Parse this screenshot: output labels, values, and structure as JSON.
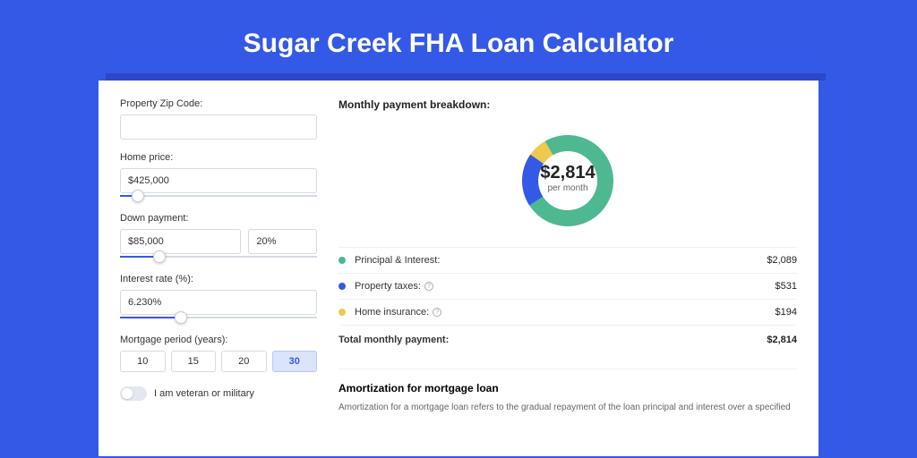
{
  "page": {
    "title": "Sugar Creek FHA Loan Calculator",
    "background": "#3459e6"
  },
  "form": {
    "zip": {
      "label": "Property Zip Code:",
      "value": ""
    },
    "home_price": {
      "label": "Home price:",
      "value": "$425,000",
      "slider_pct": 9
    },
    "down_payment": {
      "label": "Down payment:",
      "amount": "$85,000",
      "pct": "20%",
      "slider_pct": 20
    },
    "interest": {
      "label": "Interest rate (%):",
      "value": "6.230%",
      "slider_pct": 31
    },
    "period": {
      "label": "Mortgage period (years):",
      "options": [
        "10",
        "15",
        "20",
        "30"
      ],
      "selected": "30"
    },
    "veteran": {
      "label": "I am veteran or military",
      "checked": false
    }
  },
  "breakdown": {
    "title": "Monthly payment breakdown:",
    "center_amount": "$2,814",
    "center_sub": "per month",
    "items": [
      {
        "label": "Principal & Interest:",
        "value": "$2,089",
        "color": "#4eb891",
        "info": false,
        "pct": 74.2
      },
      {
        "label": "Property taxes:",
        "value": "$531",
        "color": "#3459e6",
        "info": true,
        "pct": 18.9
      },
      {
        "label": "Home insurance:",
        "value": "$194",
        "color": "#f0c94c",
        "info": true,
        "pct": 6.9
      }
    ],
    "total_label": "Total monthly payment:",
    "total_value": "$2,814"
  },
  "amortization": {
    "title": "Amortization for mortgage loan",
    "text": "Amortization for a mortgage loan refers to the gradual repayment of the loan principal and interest over a specified"
  },
  "donut": {
    "size": 120,
    "thickness": 18,
    "track_color": "#eef0f4"
  }
}
